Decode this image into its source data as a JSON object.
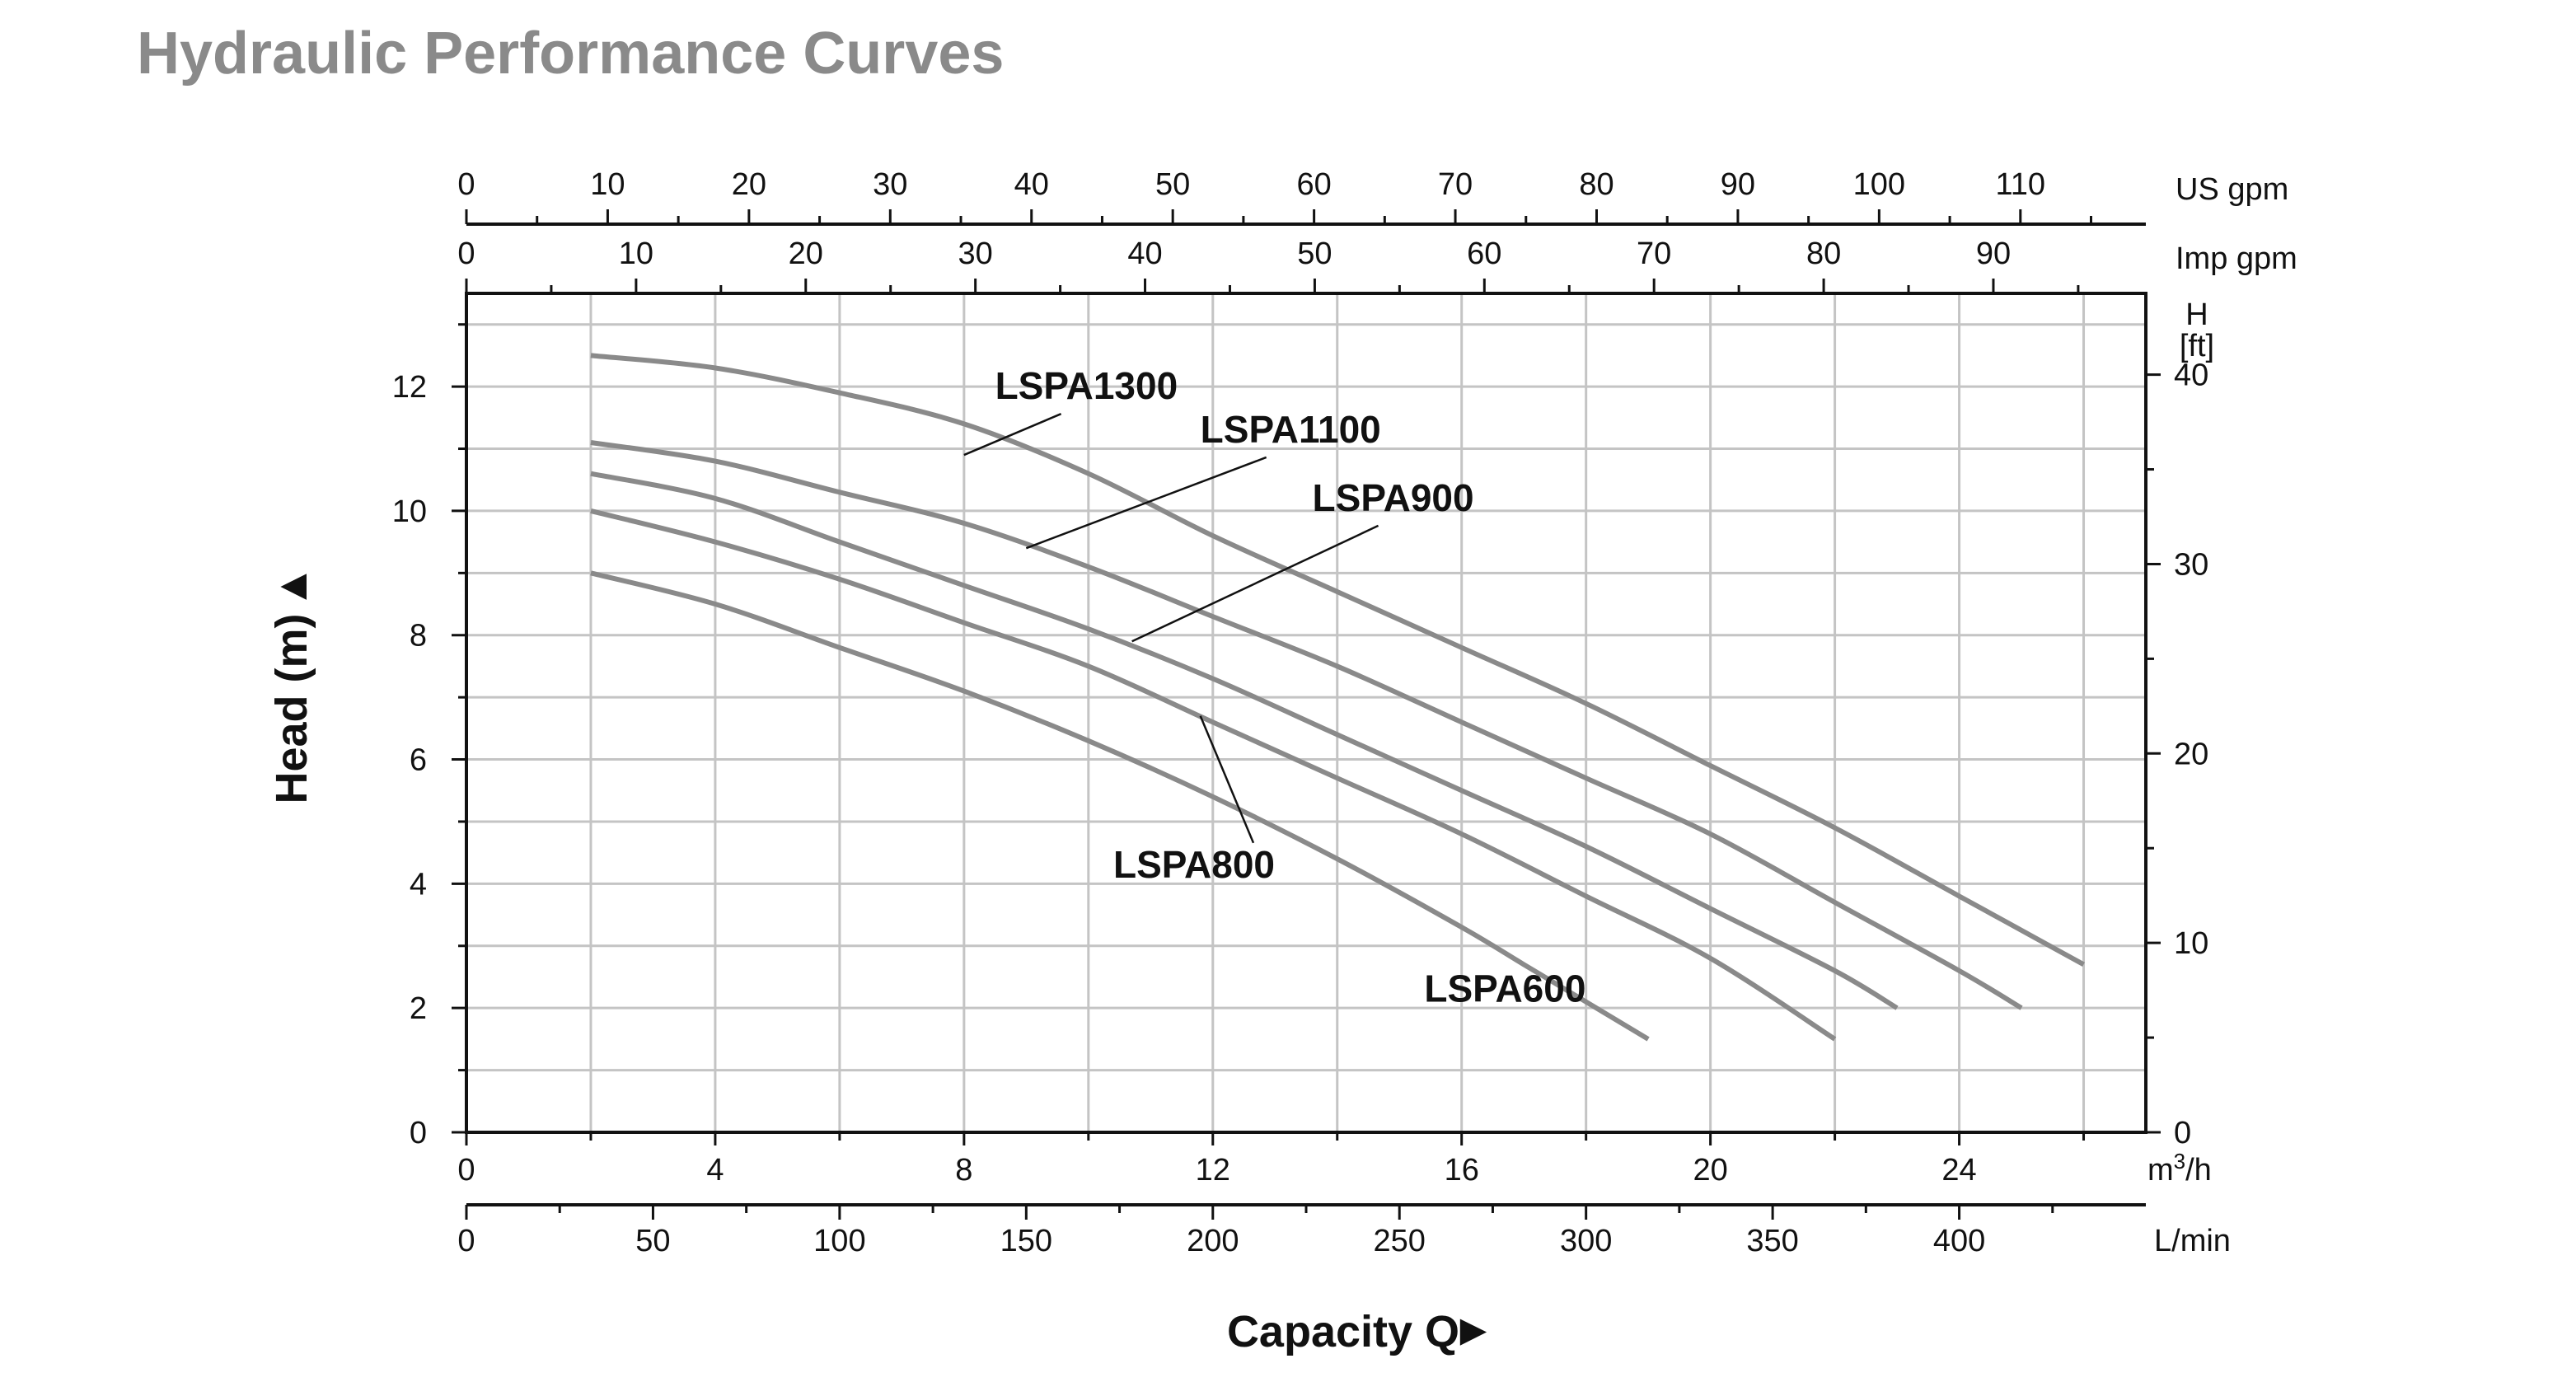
{
  "page": {
    "title": "Hydraulic Performance Curves"
  },
  "chart_data": {
    "type": "line",
    "title": "Hydraulic Performance Curves",
    "xlabel": "Capacity Q",
    "ylabel": "Head (m)",
    "xlim": [
      0,
      27
    ],
    "ylim": [
      0,
      13.5
    ],
    "grid": true,
    "arrow_glyph": "►",
    "up_arrow_glyph": "▲",
    "axes": {
      "bottom_primary": {
        "unit": "m³/h",
        "unit_base": "m",
        "unit_sup": "3",
        "unit_tail": "/h",
        "factor": 1,
        "ticks": [
          0,
          4,
          8,
          12,
          16,
          20,
          24
        ]
      },
      "bottom_secondary": {
        "unit": "L/min",
        "factor": 16.6667,
        "ticks": [
          0,
          50,
          100,
          150,
          200,
          250,
          300,
          350,
          400
        ]
      },
      "top_primary": {
        "unit": "US gpm",
        "factor": 4.4029,
        "ticks": [
          0,
          10,
          20,
          30,
          40,
          50,
          60,
          70,
          80,
          90,
          100,
          110
        ]
      },
      "top_secondary": {
        "unit": "Imp gpm",
        "factor": 3.6662,
        "ticks": [
          0,
          10,
          20,
          30,
          40,
          50,
          60,
          70,
          80,
          90
        ]
      },
      "left": {
        "unit": "Head (m)",
        "ticks": [
          0,
          2,
          4,
          6,
          8,
          10,
          12
        ]
      },
      "right": {
        "unit_line1": "H",
        "unit_line2": "[ft]",
        "factor": 3.2808,
        "ticks": [
          0,
          10,
          20,
          30,
          40
        ]
      }
    },
    "series": [
      {
        "name": "LSPA1300",
        "x": [
          2,
          4,
          6,
          8,
          10,
          12,
          14,
          16,
          18,
          20,
          22,
          24,
          26
        ],
        "y": [
          12.5,
          12.3,
          11.9,
          11.4,
          10.6,
          9.6,
          8.7,
          7.8,
          6.9,
          5.9,
          4.9,
          3.8,
          2.7
        ],
        "label_at": [
          8.5,
          11.8
        ],
        "leader_from": [
          8.0,
          10.9
        ]
      },
      {
        "name": "LSPA1100",
        "x": [
          2,
          4,
          6,
          8,
          10,
          12,
          14,
          16,
          18,
          20,
          22,
          24,
          25
        ],
        "y": [
          11.1,
          10.8,
          10.3,
          9.8,
          9.1,
          8.3,
          7.5,
          6.6,
          5.7,
          4.8,
          3.7,
          2.6,
          2.0
        ],
        "label_at": [
          11.8,
          11.1
        ],
        "leader_from": [
          9.0,
          9.4
        ]
      },
      {
        "name": "LSPA900",
        "x": [
          2,
          4,
          6,
          8,
          10,
          12,
          14,
          16,
          18,
          20,
          22,
          23
        ],
        "y": [
          10.6,
          10.2,
          9.5,
          8.8,
          8.1,
          7.3,
          6.4,
          5.5,
          4.6,
          3.6,
          2.6,
          2.0
        ],
        "label_at": [
          13.6,
          10.0
        ],
        "leader_from": [
          10.7,
          7.9
        ]
      },
      {
        "name": "LSPA800",
        "x": [
          2,
          4,
          6,
          8,
          10,
          12,
          14,
          16,
          18,
          20,
          22
        ],
        "y": [
          10.0,
          9.5,
          8.9,
          8.2,
          7.5,
          6.6,
          5.7,
          4.8,
          3.8,
          2.8,
          1.5
        ],
        "label_at": [
          10.4,
          4.1
        ],
        "leader_from": [
          11.8,
          6.7
        ]
      },
      {
        "name": "LSPA600",
        "x": [
          2,
          4,
          6,
          8,
          10,
          12,
          14,
          16,
          17,
          18,
          19
        ],
        "y": [
          9.0,
          8.5,
          7.8,
          7.1,
          6.3,
          5.4,
          4.4,
          3.3,
          2.7,
          2.1,
          1.5
        ],
        "label_at": [
          15.4,
          2.1
        ],
        "leader_from": null
      }
    ]
  }
}
